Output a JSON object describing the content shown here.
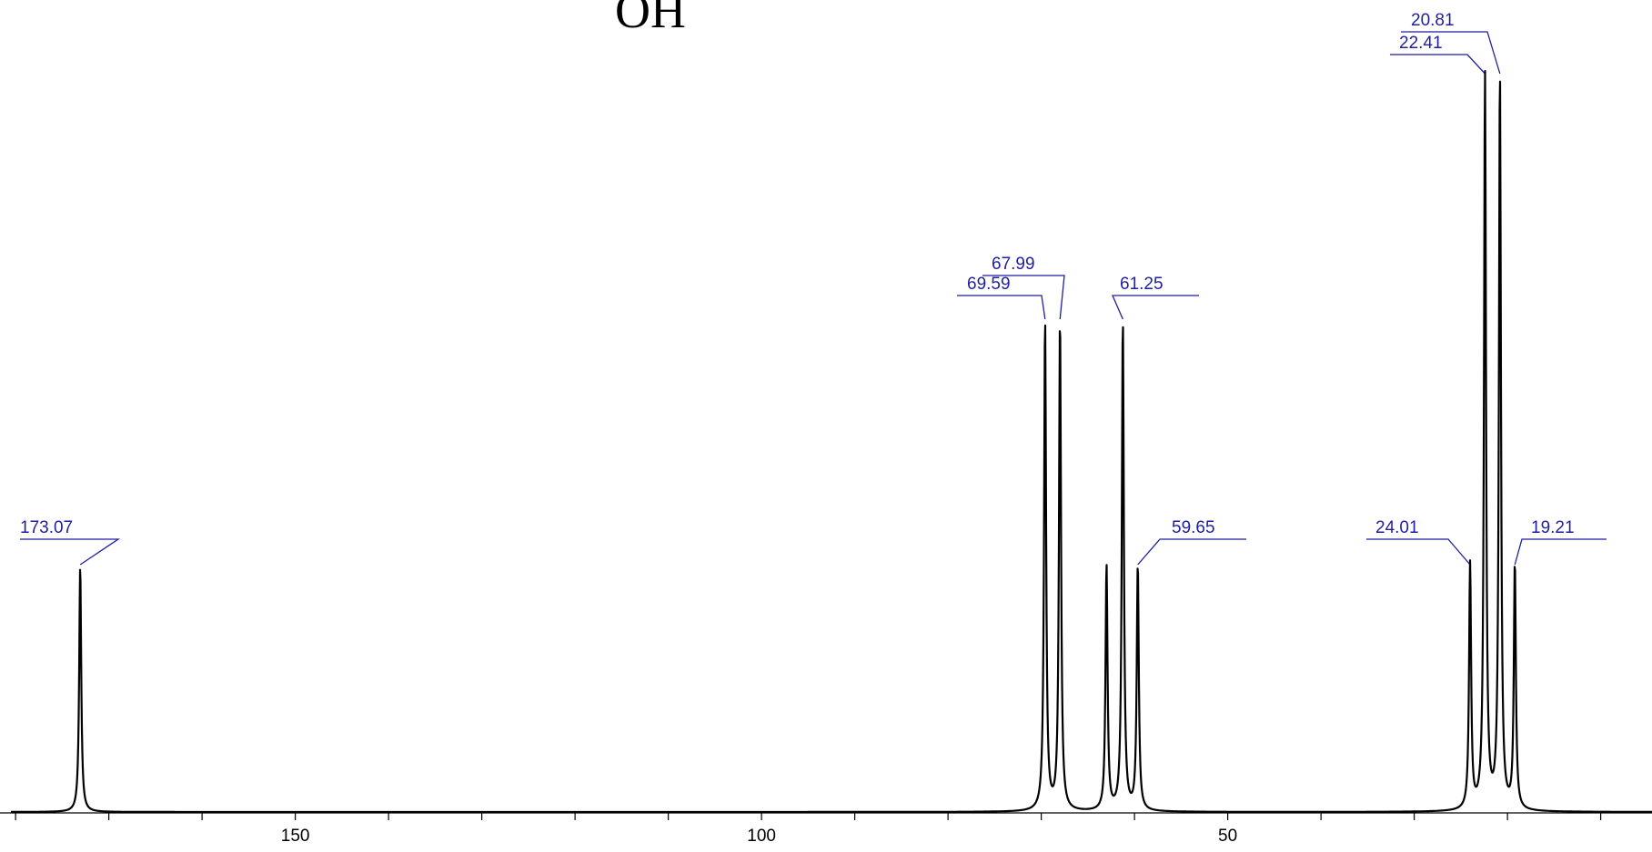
{
  "structure_fragment": "OH",
  "chart_data": {
    "type": "line",
    "subtype": "nmr-spectrum",
    "title": "",
    "xlabel": "",
    "ylabel": "",
    "x_reversed": true,
    "xlim": [
      180.5,
      4.5
    ],
    "ylim": [
      0,
      1.0
    ],
    "grid": false,
    "ticks": {
      "major": [
        150,
        100,
        50
      ],
      "major_labels": [
        "150",
        "100",
        "50"
      ],
      "minor_step": 10
    },
    "peaks": [
      {
        "ppm": 173.07,
        "height": 0.5,
        "label": "173.07"
      },
      {
        "ppm": 69.59,
        "height": 1.0,
        "label": "69.59"
      },
      {
        "ppm": 67.99,
        "height": 1.0,
        "label": "67.99"
      },
      {
        "ppm": 63.0,
        "height": 0.5,
        "label": ""
      },
      {
        "ppm": 61.25,
        "height": 1.0,
        "label": "61.25"
      },
      {
        "ppm": 59.65,
        "height": 0.5,
        "label": "59.65"
      },
      {
        "ppm": 24.01,
        "height": 0.5,
        "label": "24.01"
      },
      {
        "ppm": 22.41,
        "height": 1.5,
        "label": "22.41"
      },
      {
        "ppm": 20.81,
        "height": 1.5,
        "label": "20.81"
      },
      {
        "ppm": 19.21,
        "height": 0.5,
        "label": "19.21"
      }
    ]
  }
}
